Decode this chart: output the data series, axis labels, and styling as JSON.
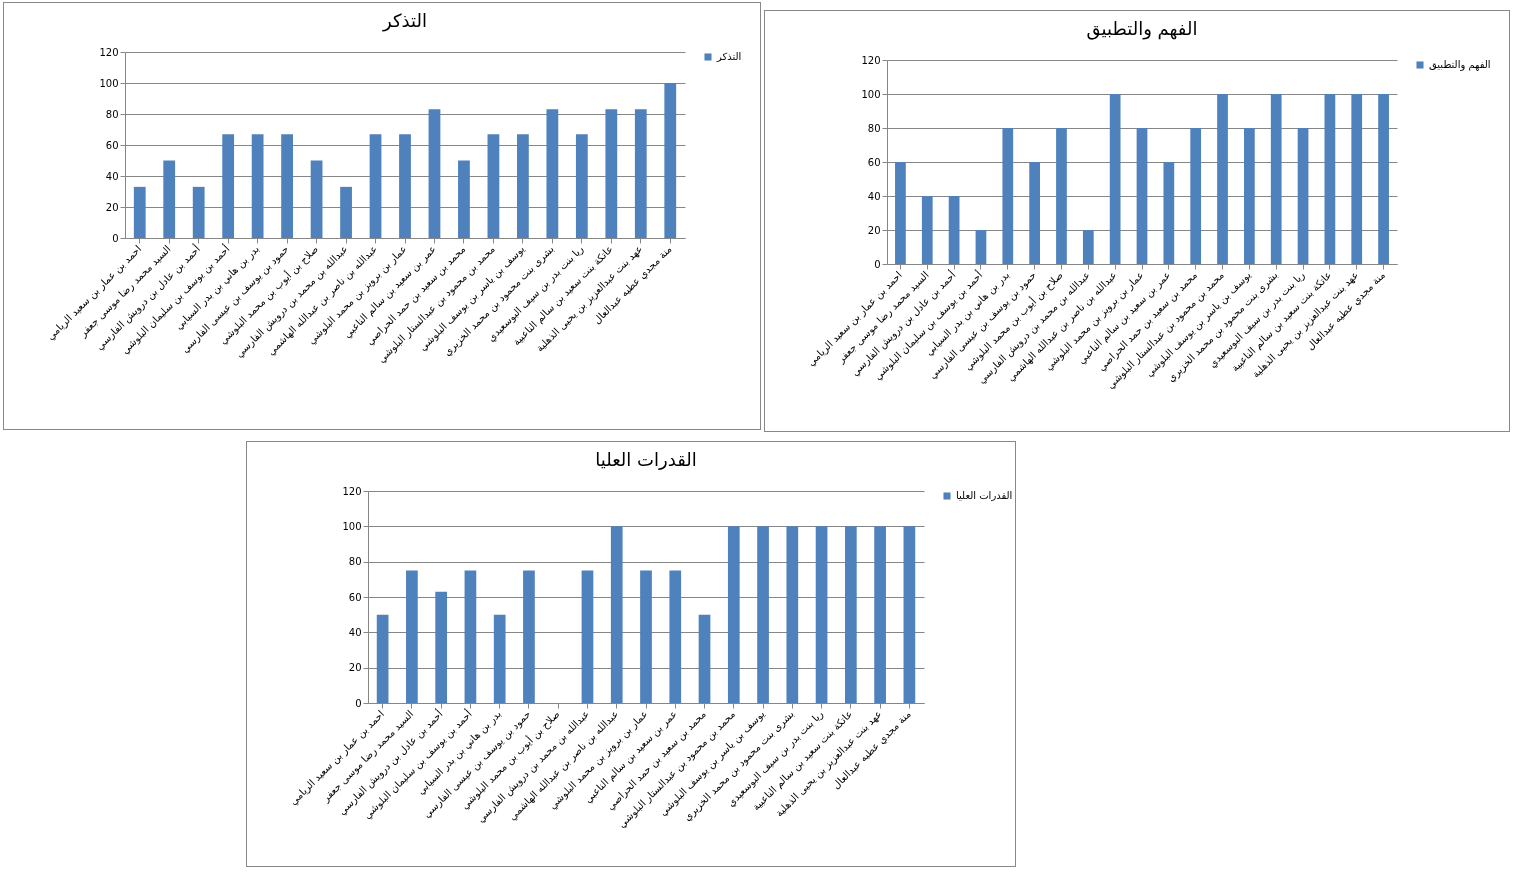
{
  "chart_data": [
    {
      "type": "bar",
      "title": "التذكر",
      "categories": [
        "احمد بن عمار بن سعيد الريامي",
        "السيد محمد رضا موسى جعفر",
        "أحمد بن عادل بن درويش الفارسي",
        "أحمد بن يوسف بن سليمان البلوشي",
        "بدر بن هاني بن بدر السيابي",
        "حمود بن يوسف بن عيسى الفارسي",
        "صلاح بن أيوب بن محمد البلوشي",
        "عبدالله بن محمد بن درويش الفارسي",
        "عبدالله بن ناصر بن عبدالله الهاشمي",
        "عمار بن برويز بن محمد البلوشي",
        "عمر بن سعيد بن سالم الناعبي",
        "محمد بن سعيد بن حمد الحراصي",
        "محمد بن محمود بن عبدالستار البلوشي",
        "يوسف بن ياسر بن يوسف البلوشي",
        "بشرى بنت محمود بن محمد الخزيري",
        "ريا بنت بدر بن سيف البوسعيدي",
        "عاتكة بنت سعيد بن سالم الناعبية",
        "عهد بنت عبدالعزيز بن يحيى الذهلية",
        "منة مجدي عطيه عبدالعال"
      ],
      "series": [
        {
          "name": "التذكر",
          "color": "#4f81bd",
          "values": [
            33,
            50,
            33,
            67,
            67,
            67,
            50,
            33,
            67,
            67,
            83,
            50,
            67,
            67,
            83,
            67,
            83,
            83,
            100
          ]
        }
      ],
      "ylim": [
        0,
        120
      ],
      "yticks": [
        0,
        20,
        40,
        60,
        80,
        100,
        120
      ],
      "grid": "y",
      "legend": "right"
    },
    {
      "type": "bar",
      "title": "الفهم والتطبيق",
      "categories": [
        "احمد بن عمار بن سعيد الريامي",
        "السيد محمد رضا موسى جعفر",
        "أحمد بن عادل بن درويش الفارسي",
        "أحمد بن يوسف بن سليمان البلوشي",
        "بدر بن هاني بن بدر السيابي",
        "حمود بن يوسف بن عيسى الفارسي",
        "صلاح بن أيوب بن محمد البلوشي",
        "عبدالله بن محمد بن درويش الفارسي",
        "عبدالله بن ناصر بن عبدالله الهاشمي",
        "عمار بن برويز بن محمد البلوشي",
        "عمر بن سعيد بن سالم الناعبي",
        "محمد بن سعيد بن حمد الحراصي",
        "محمد بن محمود بن عبدالستار البلوشي",
        "يوسف بن ياسر بن يوسف البلوشي",
        "بشرى بنت محمود بن محمد الخزيري",
        "ريا بنت بدر بن سيف البوسعيدي",
        "عاتكة بنت سعيد بن سالم الناعبية",
        "عهد بنت عبدالعزيز بن يحيى الذهلية",
        "منة مجدي عطيه عبدالعال"
      ],
      "series": [
        {
          "name": "الفهم والتطبيق",
          "color": "#4f81bd",
          "values": [
            60,
            40,
            40,
            20,
            80,
            60,
            80,
            20,
            100,
            80,
            60,
            80,
            100,
            80,
            100,
            80,
            100,
            100,
            100
          ]
        }
      ],
      "ylim": [
        0,
        120
      ],
      "yticks": [
        0,
        20,
        40,
        60,
        80,
        100,
        120
      ],
      "grid": "y",
      "legend": "right"
    },
    {
      "type": "bar",
      "title": "القدرات العليا",
      "categories": [
        "احمد بن عمار بن سعيد الريامي",
        "السيد محمد رضا موسى جعفر",
        "أحمد بن عادل بن درويش الفارسي",
        "أحمد بن يوسف بن سليمان البلوشي",
        "بدر بن هاني بن بدر السيابي",
        "حمود بن يوسف بن عيسى الفارسي",
        "صلاح بن أيوب بن محمد البلوشي",
        "عبدالله بن محمد بن درويش الفارسي",
        "عبدالله بن ناصر بن عبدالله الهاشمي",
        "عمار بن برويز بن محمد البلوشي",
        "عمر بن سعيد بن سالم الناعبي",
        "محمد بن سعيد بن حمد الحراصي",
        "محمد بن محمود بن عبدالستار البلوشي",
        "يوسف بن ياسر بن يوسف البلوشي",
        "بشرى بنت محمود بن محمد الخزيري",
        "ريا بنت بدر بن سيف البوسعيدي",
        "عاتكة بنت سعيد بن سالم الناعبية",
        "عهد بنت عبدالعزيز بن يحيى الذهلية",
        "منة مجدي عطيه عبدالعال"
      ],
      "series": [
        {
          "name": "القدرات العليا",
          "color": "#4f81bd",
          "values": [
            50,
            75,
            63,
            75,
            50,
            75,
            0,
            75,
            100,
            75,
            75,
            50,
            100,
            100,
            100,
            100,
            100,
            100,
            100
          ]
        }
      ],
      "ylim": [
        0,
        120
      ],
      "yticks": [
        0,
        20,
        40,
        60,
        80,
        100,
        120
      ],
      "grid": "y",
      "legend": "right"
    }
  ]
}
